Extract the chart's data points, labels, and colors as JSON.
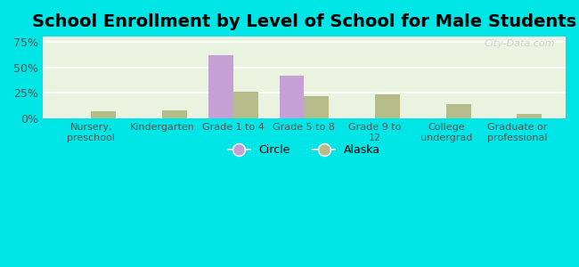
{
  "title": "School Enrollment by Level of School for Male Students",
  "categories": [
    "Nursery,\npreschool",
    "Kindergarten",
    "Grade 1 to 4",
    "Grade 5 to 8",
    "Grade 9 to\n12",
    "College\nundergrad",
    "Graduate or\nprofessional"
  ],
  "circle_values": [
    0,
    0,
    62,
    42,
    0,
    0,
    0
  ],
  "alaska_values": [
    7,
    8,
    26,
    22,
    24,
    14,
    5
  ],
  "circle_color": "#c4a0d4",
  "alaska_color": "#b5bc8a",
  "ylim": [
    0,
    80
  ],
  "yticks": [
    0,
    25,
    50,
    75
  ],
  "ytick_labels": [
    "0%",
    "25%",
    "50%",
    "75%"
  ],
  "legend_circle_label": "Circle",
  "legend_alaska_label": "Alaska",
  "title_fontsize": 14,
  "background_color": "#00e5e5",
  "plot_bg_color": "#eaf2e0",
  "watermark": "City-Data.com",
  "bar_width": 0.35
}
